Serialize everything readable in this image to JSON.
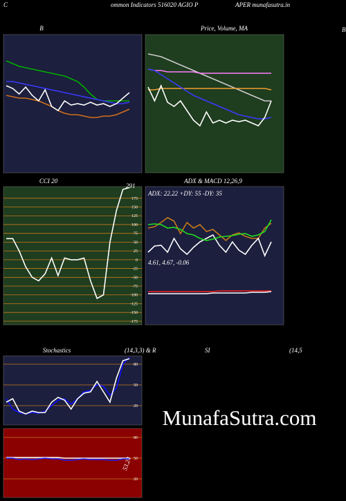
{
  "header": {
    "left": "C",
    "middle": "ommon  Indicators 516020  AGIO P",
    "right": "APER munafasutra.in",
    "far_right": "B"
  },
  "row_labels": [
    "(14,3,3) & R",
    "SI",
    "(14,5"
  ],
  "watermark": "MunafaSutra.com",
  "chart_data": [
    {
      "type": "line",
      "title": "B",
      "background": "#1c1f3d",
      "ylim": [
        0,
        100
      ],
      "series": [
        {
          "color": "#00b000",
          "values": [
            81,
            79,
            77,
            76,
            75,
            74,
            73,
            72,
            71,
            70,
            68,
            66,
            62,
            57,
            53,
            52,
            52,
            52,
            52,
            52
          ]
        },
        {
          "color": "#3a3aff",
          "values": [
            66,
            66,
            65,
            64,
            63,
            62,
            61,
            60,
            59,
            58,
            57,
            56,
            55,
            54,
            53,
            52,
            51,
            50,
            50,
            51
          ]
        },
        {
          "color": "#d0701a",
          "values": [
            56,
            55,
            54,
            54,
            53,
            52,
            50,
            48,
            45,
            43,
            42,
            42,
            41,
            40,
            40,
            41,
            41,
            42,
            44,
            46
          ]
        },
        {
          "color": "#ffffff",
          "values": [
            63,
            61,
            57,
            62,
            56,
            52,
            60,
            48,
            45,
            52,
            49,
            50,
            49,
            51,
            49,
            50,
            48,
            50,
            54,
            58
          ]
        }
      ]
    },
    {
      "type": "line",
      "title": "Price,  Volume,  MA",
      "background": "#1f3d1f",
      "ylim": [
        0,
        100
      ],
      "series": [
        {
          "color": "#cccccc",
          "values": [
            86,
            85,
            84,
            82,
            80,
            78,
            76,
            74,
            72,
            70,
            68,
            66,
            64,
            62,
            60,
            58,
            56,
            54,
            52,
            52
          ]
        },
        {
          "color": "#ff80ff",
          "values": [
            75,
            74,
            74,
            73,
            73,
            73,
            73,
            73,
            72,
            72,
            72,
            72,
            72,
            72,
            72,
            72,
            72,
            72,
            72,
            72
          ]
        },
        {
          "color": "#f0a030",
          "values": [
            60,
            60,
            61,
            61,
            61,
            61,
            61,
            61,
            61,
            61,
            61,
            61,
            61,
            61,
            61,
            61,
            61,
            61,
            61,
            60
          ]
        },
        {
          "color": "#3a3aff",
          "values": [
            75,
            74,
            71,
            68,
            65,
            62,
            59,
            56,
            54,
            52,
            50,
            48,
            46,
            44,
            42,
            41,
            40,
            39,
            39,
            40
          ]
        },
        {
          "color": "#ffffff",
          "values": [
            62,
            52,
            63,
            51,
            48,
            52,
            45,
            38,
            34,
            44,
            36,
            38,
            36,
            38,
            37,
            38,
            36,
            34,
            40,
            52
          ]
        }
      ]
    },
    {
      "type": "line",
      "title": "CCI 20",
      "background": "#1f3d1f",
      "grid_color": "#c87a1a",
      "ylim": [
        -185,
        208
      ],
      "yticks": [
        175,
        150,
        125,
        100,
        75,
        50,
        25,
        0,
        -25,
        -50,
        -75,
        -100,
        -125,
        -150,
        -175
      ],
      "annotations": [
        "291"
      ],
      "series": [
        {
          "color": "#ffffff",
          "values": [
            60,
            60,
            25,
            -20,
            -50,
            -60,
            -40,
            5,
            -45,
            5,
            0,
            0,
            5,
            -60,
            -110,
            -100,
            50,
            140,
            200,
            205
          ]
        }
      ]
    },
    {
      "type": "line",
      "title": "ADX  & MACD 12,26,9",
      "background": "#1c1f3d",
      "ylim": [
        -100,
        100
      ],
      "annotations": [
        "ADX: 22.22  +DY: 55 -DY: 35",
        "4.61,  4.67,  -0.06"
      ],
      "series": [
        {
          "color": "#c87a1a",
          "values": [
            40,
            42,
            48,
            55,
            50,
            32,
            48,
            40,
            45,
            35,
            38,
            30,
            22,
            30,
            33,
            28,
            25,
            25,
            40,
            47
          ]
        },
        {
          "color": "#ffffff",
          "values": [
            5,
            14,
            15,
            5,
            25,
            10,
            2,
            12,
            20,
            25,
            30,
            15,
            5,
            20,
            8,
            2,
            15,
            25,
            0,
            20
          ]
        },
        {
          "color": "#20e020",
          "values": [
            45,
            46,
            45,
            40,
            41,
            38,
            32,
            30,
            25,
            22,
            24,
            27,
            28,
            29,
            31,
            32,
            28,
            30,
            35,
            52
          ]
        },
        {
          "color": "#ff2020",
          "values": [
            -52,
            -52,
            -52,
            -52,
            -52,
            -52,
            -52,
            -52,
            -52,
            -52,
            -52,
            -51,
            -51,
            -51,
            -51,
            -51,
            -51,
            -51,
            -51,
            -51
          ]
        },
        {
          "color": "#ffffff",
          "values": [
            -55,
            -55,
            -55,
            -55,
            -55,
            -55,
            -55,
            -55,
            -55,
            -55,
            -54,
            -54,
            -54,
            -54,
            -54,
            -54,
            -53,
            -53,
            -53,
            -52
          ]
        }
      ]
    },
    {
      "type": "line",
      "title": "Stochastics",
      "background": "#1c1f3d",
      "grid_color": "#c87a1a",
      "ylim": [
        -8,
        92
      ],
      "yticks": [
        80,
        50,
        20
      ],
      "series": [
        {
          "color": "#1010ff",
          "values": [
            30,
            15,
            10,
            8,
            10,
            9,
            12,
            20,
            28,
            30,
            22,
            30,
            40,
            42,
            50,
            48,
            35,
            45,
            80,
            90
          ]
        },
        {
          "color": "#ffffff",
          "values": [
            25,
            30,
            12,
            8,
            12,
            10,
            10,
            25,
            32,
            28,
            15,
            30,
            38,
            40,
            55,
            40,
            25,
            60,
            85,
            88
          ]
        }
      ]
    },
    {
      "type": "line",
      "background": "#8b0000",
      "grid_color": "#c87a1a",
      "ylim": [
        -7,
        93
      ],
      "yticks": [
        80,
        50,
        20
      ],
      "annotations": [
        "53.24"
      ],
      "series": [
        {
          "color": "#ffffff",
          "values": [
            51,
            51,
            51,
            51,
            51,
            51,
            51,
            51,
            51,
            50,
            50,
            50,
            50,
            50,
            50,
            50,
            50,
            50,
            50,
            50
          ]
        },
        {
          "color": "#2020ff",
          "values": [
            50,
            50,
            48,
            49,
            48,
            49,
            50,
            49,
            49,
            47,
            47,
            48,
            49,
            48,
            48,
            48,
            47,
            47,
            49,
            49
          ]
        }
      ]
    }
  ]
}
